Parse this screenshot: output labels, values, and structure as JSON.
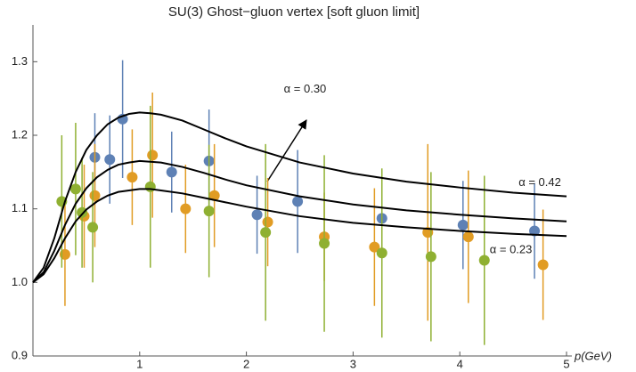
{
  "chart_data": {
    "type": "scatter",
    "title": "SU(3) Ghost−gluon vertex [soft gluon limit]",
    "x_label": "p(GeV)",
    "xlim": [
      0,
      5
    ],
    "ylim": [
      0.9,
      1.35
    ],
    "xticks": [
      1,
      2,
      3,
      4,
      5
    ],
    "yticks": [
      0.9,
      {
        "value": 1,
        "label": "1.0"
      },
      1.1,
      1.2,
      1.3
    ],
    "series": [
      {
        "color": "#5e81b5",
        "x": [
          0.58,
          0.72,
          0.84,
          1.3,
          1.65,
          2.1,
          2.48,
          3.27,
          4.03,
          4.7
        ],
        "values": [
          1.17,
          1.167,
          1.222,
          1.15,
          1.165,
          1.092,
          1.11,
          1.087,
          1.078,
          1.07
        ],
        "errors": [
          0.06,
          0.06,
          0.08,
          0.055,
          0.07,
          0.053,
          0.07,
          0.065,
          0.06,
          0.065
        ]
      },
      {
        "color": "#e19c24",
        "x": [
          0.3,
          0.48,
          0.58,
          0.93,
          1.12,
          1.43,
          1.7,
          2.2,
          2.73,
          3.2,
          3.7,
          4.08,
          4.78
        ],
        "values": [
          1.038,
          1.09,
          1.118,
          1.143,
          1.173,
          1.1,
          1.118,
          1.082,
          1.062,
          1.048,
          1.068,
          1.062,
          1.024
        ],
        "errors": [
          0.07,
          0.07,
          0.07,
          0.065,
          0.085,
          0.06,
          0.07,
          0.06,
          0.06,
          0.08,
          0.12,
          0.09,
          0.075
        ]
      },
      {
        "color": "#8fb032",
        "x": [
          0.27,
          0.4,
          0.46,
          0.56,
          1.1,
          1.65,
          2.18,
          2.73,
          3.27,
          3.73,
          4.23
        ],
        "values": [
          1.11,
          1.127,
          1.095,
          1.075,
          1.13,
          1.097,
          1.068,
          1.053,
          1.04,
          1.035,
          1.03
        ],
        "errors": [
          0.09,
          0.09,
          0.075,
          0.075,
          0.11,
          0.09,
          0.12,
          0.12,
          0.115,
          0.115,
          0.115
        ]
      }
    ],
    "lines": [
      {
        "name": "α = 0.42",
        "color": "#000000",
        "x": [
          0,
          0.1,
          0.2,
          0.3,
          0.4,
          0.5,
          0.6,
          0.7,
          0.8,
          0.9,
          1.0,
          1.1,
          1.2,
          1.4,
          1.6,
          1.8,
          2.0,
          2.5,
          3,
          3.5,
          4,
          4.5,
          5
        ],
        "values": [
          1.0,
          1.02,
          1.06,
          1.11,
          1.15,
          1.18,
          1.2,
          1.215,
          1.224,
          1.229,
          1.231,
          1.23,
          1.228,
          1.22,
          1.208,
          1.196,
          1.185,
          1.163,
          1.148,
          1.137,
          1.129,
          1.122,
          1.117
        ]
      },
      {
        "name": "α = 0.30",
        "color": "#000000",
        "x": [
          0,
          0.1,
          0.2,
          0.3,
          0.4,
          0.5,
          0.6,
          0.7,
          0.8,
          0.9,
          1.0,
          1.1,
          1.2,
          1.4,
          1.6,
          1.8,
          2.0,
          2.5,
          3,
          3.5,
          4,
          4.5,
          5
        ],
        "values": [
          1.0,
          1.014,
          1.043,
          1.078,
          1.107,
          1.128,
          1.143,
          1.153,
          1.16,
          1.163,
          1.165,
          1.164,
          1.163,
          1.157,
          1.149,
          1.14,
          1.132,
          1.117,
          1.106,
          1.098,
          1.092,
          1.087,
          1.083
        ]
      },
      {
        "name": "α = 0.23",
        "color": "#000000",
        "x": [
          0,
          0.1,
          0.2,
          0.3,
          0.4,
          0.5,
          0.6,
          0.7,
          0.8,
          0.9,
          1.0,
          1.1,
          1.2,
          1.4,
          1.6,
          1.8,
          2.0,
          2.5,
          3,
          3.5,
          4,
          4.5,
          5
        ],
        "values": [
          1.0,
          1.011,
          1.033,
          1.06,
          1.083,
          1.099,
          1.11,
          1.118,
          1.123,
          1.125,
          1.127,
          1.127,
          1.125,
          1.121,
          1.115,
          1.109,
          1.103,
          1.09,
          1.081,
          1.075,
          1.07,
          1.066,
          1.063
        ]
      }
    ]
  }
}
